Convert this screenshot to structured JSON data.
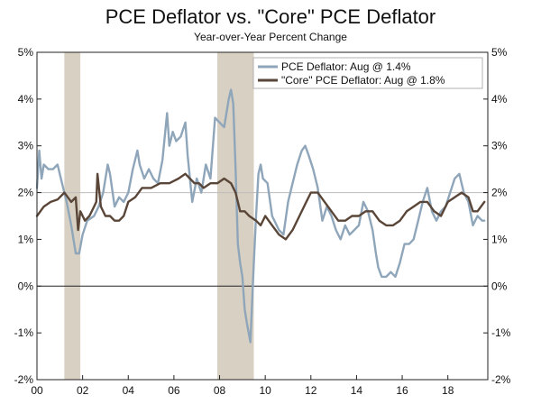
{
  "chart_data": {
    "type": "line",
    "title": "PCE Deflator vs. \"Core\" PCE Deflator",
    "subtitle": "Year-over-Year Percent Change",
    "xlabel": "",
    "ylabel": "",
    "xlim": [
      2000.0,
      2019.75
    ],
    "ylim": [
      -2,
      5
    ],
    "y_ticks": [
      -2,
      -1,
      0,
      1,
      2,
      3,
      4,
      5
    ],
    "y_tick_labels": [
      "-2%",
      "-1%",
      "0%",
      "1%",
      "2%",
      "3%",
      "4%",
      "5%"
    ],
    "x_ticks": [
      2000,
      2002,
      2004,
      2006,
      2008,
      2010,
      2012,
      2014,
      2016,
      2018
    ],
    "x_tick_labels": [
      "00",
      "02",
      "04",
      "06",
      "08",
      "10",
      "12",
      "14",
      "16",
      "18"
    ],
    "recessions": [
      [
        2001.2,
        2001.9
      ],
      [
        2007.9,
        2009.5
      ]
    ],
    "series": [
      {
        "name": "PCE Deflator: Aug @ 1.4%",
        "color": "#8fa6ba",
        "x": [
          2000.0,
          2000.1,
          2000.2,
          2000.3,
          2000.5,
          2000.7,
          2000.9,
          2001.1,
          2001.3,
          2001.5,
          2001.6,
          2001.7,
          2001.85,
          2002.0,
          2002.2,
          2002.5,
          2002.7,
          2002.9,
          2003.1,
          2003.2,
          2003.4,
          2003.6,
          2003.8,
          2004.0,
          2004.2,
          2004.4,
          2004.5,
          2004.7,
          2004.9,
          2005.1,
          2005.3,
          2005.5,
          2005.7,
          2005.8,
          2005.95,
          2006.1,
          2006.3,
          2006.5,
          2006.6,
          2006.8,
          2007.0,
          2007.2,
          2007.4,
          2007.6,
          2007.8,
          2008.0,
          2008.2,
          2008.4,
          2008.5,
          2008.6,
          2008.7,
          2008.8,
          2008.9,
          2009.0,
          2009.1,
          2009.2,
          2009.35,
          2009.5,
          2009.6,
          2009.7,
          2009.8,
          2009.9,
          2010.1,
          2010.3,
          2010.6,
          2010.8,
          2011.0,
          2011.2,
          2011.4,
          2011.6,
          2011.75,
          2011.9,
          2012.1,
          2012.3,
          2012.5,
          2012.7,
          2012.9,
          2013.1,
          2013.3,
          2013.5,
          2013.7,
          2013.9,
          2014.1,
          2014.3,
          2014.5,
          2014.7,
          2014.85,
          2014.95,
          2015.1,
          2015.3,
          2015.5,
          2015.7,
          2015.9,
          2016.1,
          2016.3,
          2016.5,
          2016.7,
          2016.9,
          2017.1,
          2017.3,
          2017.5,
          2017.7,
          2017.9,
          2018.1,
          2018.3,
          2018.5,
          2018.7,
          2018.9,
          2019.1,
          2019.3,
          2019.5,
          2019.6
        ],
        "values": [
          2.1,
          2.9,
          2.3,
          2.6,
          2.5,
          2.5,
          2.6,
          2.2,
          1.8,
          1.3,
          1.0,
          0.7,
          0.7,
          1.1,
          1.4,
          1.5,
          1.7,
          2.0,
          2.6,
          2.4,
          1.7,
          1.9,
          1.8,
          2.0,
          2.5,
          2.9,
          2.6,
          2.3,
          2.5,
          2.3,
          2.2,
          2.7,
          3.7,
          3.0,
          3.3,
          3.1,
          3.2,
          3.5,
          2.8,
          1.8,
          2.3,
          2.0,
          2.6,
          2.3,
          3.6,
          3.5,
          3.4,
          4.0,
          4.2,
          3.9,
          2.5,
          0.9,
          0.5,
          0.2,
          -0.5,
          -0.8,
          -1.2,
          0.5,
          1.5,
          2.4,
          2.6,
          2.3,
          2.2,
          1.5,
          1.2,
          1.1,
          1.8,
          2.2,
          2.6,
          2.9,
          3.0,
          2.8,
          2.5,
          2.1,
          1.4,
          1.7,
          1.5,
          1.2,
          1.0,
          1.3,
          1.1,
          1.2,
          1.3,
          1.8,
          1.6,
          1.2,
          0.7,
          0.4,
          0.2,
          0.2,
          0.3,
          0.2,
          0.5,
          0.9,
          0.9,
          1.0,
          1.4,
          1.8,
          2.1,
          1.6,
          1.4,
          1.6,
          1.7,
          2.0,
          2.3,
          2.4,
          2.0,
          1.8,
          1.3,
          1.5,
          1.4,
          1.4
        ]
      },
      {
        "name": "\"Core\" PCE Deflator: Aug @ 1.8%",
        "color": "#5a4638",
        "x": [
          2000.0,
          2000.3,
          2000.6,
          2000.9,
          2001.2,
          2001.5,
          2001.7,
          2001.8,
          2001.9,
          2002.1,
          2002.3,
          2002.5,
          2002.6,
          2002.65,
          2002.8,
          2003.0,
          2003.2,
          2003.4,
          2003.6,
          2003.8,
          2004.0,
          2004.3,
          2004.6,
          2005.0,
          2005.4,
          2005.8,
          2006.2,
          2006.5,
          2006.7,
          2006.9,
          2007.1,
          2007.3,
          2007.6,
          2007.9,
          2008.2,
          2008.5,
          2008.7,
          2008.8,
          2008.9,
          2009.1,
          2009.3,
          2009.6,
          2009.8,
          2010.0,
          2010.3,
          2010.6,
          2010.9,
          2011.2,
          2011.5,
          2011.8,
          2012.0,
          2012.3,
          2012.6,
          2012.9,
          2013.2,
          2013.5,
          2013.8,
          2014.1,
          2014.4,
          2014.7,
          2015.0,
          2015.3,
          2015.6,
          2015.9,
          2016.2,
          2016.5,
          2016.8,
          2017.1,
          2017.4,
          2017.7,
          2018.0,
          2018.3,
          2018.6,
          2018.9,
          2019.1,
          2019.3,
          2019.6
        ],
        "values": [
          1.5,
          1.7,
          1.8,
          1.85,
          2.0,
          1.8,
          1.9,
          1.2,
          1.6,
          1.4,
          1.5,
          1.7,
          1.8,
          2.4,
          1.7,
          1.5,
          1.5,
          1.4,
          1.4,
          1.5,
          1.8,
          1.9,
          2.1,
          2.1,
          2.2,
          2.2,
          2.3,
          2.4,
          2.3,
          2.2,
          2.2,
          2.1,
          2.2,
          2.2,
          2.3,
          2.2,
          2.0,
          1.8,
          1.6,
          1.6,
          1.5,
          1.4,
          1.3,
          1.5,
          1.3,
          1.1,
          1.0,
          1.2,
          1.5,
          1.8,
          2.0,
          2.0,
          1.8,
          1.6,
          1.4,
          1.4,
          1.5,
          1.5,
          1.6,
          1.6,
          1.4,
          1.3,
          1.3,
          1.4,
          1.6,
          1.7,
          1.8,
          1.8,
          1.6,
          1.5,
          1.8,
          1.9,
          2.0,
          1.9,
          1.6,
          1.6,
          1.8
        ]
      }
    ]
  }
}
